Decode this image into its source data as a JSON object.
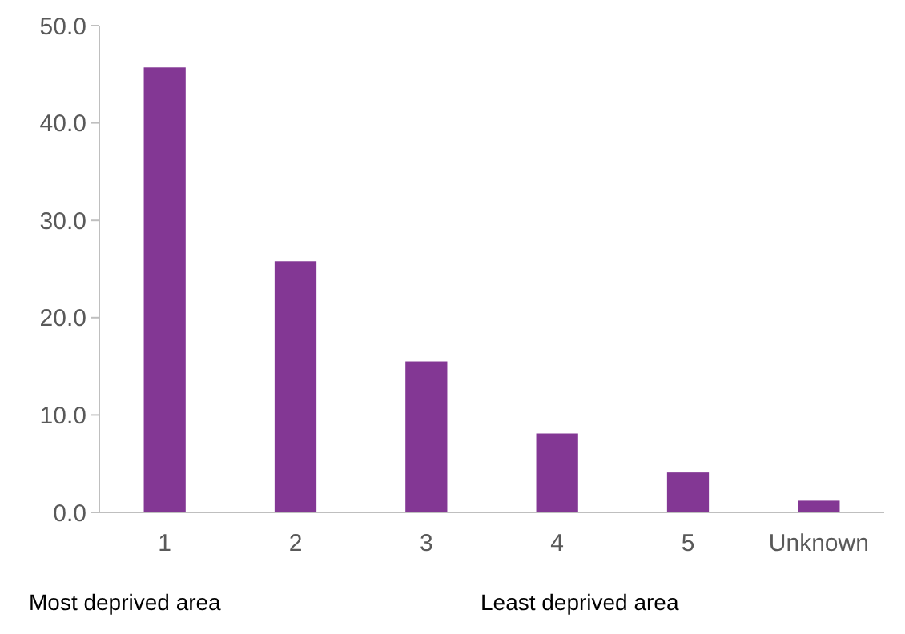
{
  "chart_data": {
    "type": "bar",
    "categories": [
      "1",
      "2",
      "3",
      "4",
      "5",
      "Unknown"
    ],
    "values": [
      45.7,
      25.8,
      15.5,
      8.1,
      4.1,
      1.2
    ],
    "color": "#833794",
    "ylim": [
      0,
      50
    ],
    "yticks": [
      {
        "value": 0,
        "label": "0.0"
      },
      {
        "value": 10,
        "label": "10.0"
      },
      {
        "value": 20,
        "label": "20.0"
      },
      {
        "value": 30,
        "label": "30.0"
      },
      {
        "value": 40,
        "label": "40.0"
      },
      {
        "value": 50,
        "label": "50.0"
      }
    ],
    "grid": false,
    "annotations": [
      "Most deprived area",
      "Least deprived area"
    ]
  }
}
